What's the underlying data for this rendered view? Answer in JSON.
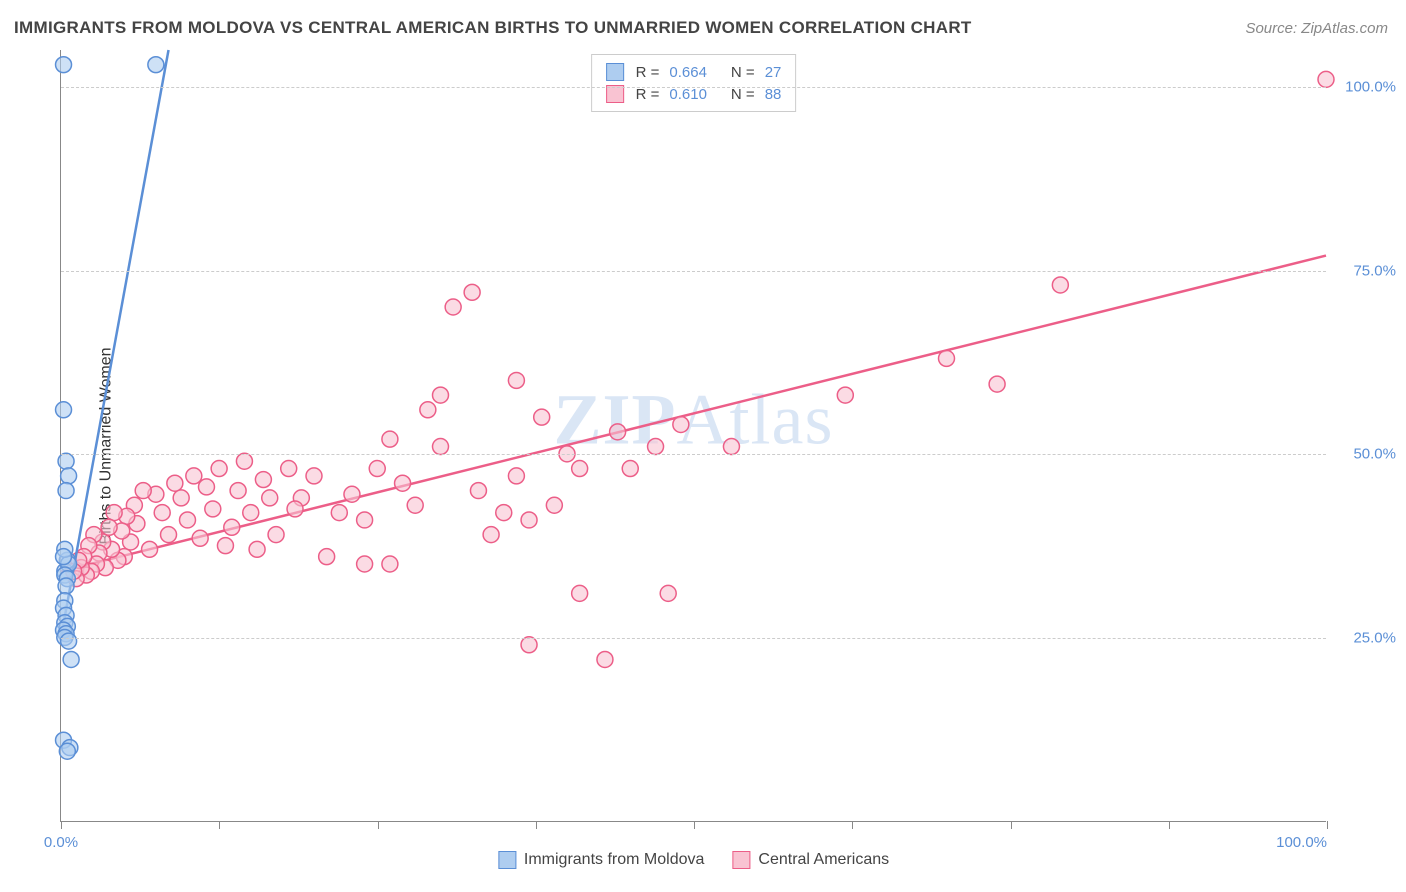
{
  "title": "IMMIGRANTS FROM MOLDOVA VS CENTRAL AMERICAN BIRTHS TO UNMARRIED WOMEN CORRELATION CHART",
  "source": "Source: ZipAtlas.com",
  "y_axis_label": "Births to Unmarried Women",
  "watermark": "ZIPAtlas",
  "chart": {
    "type": "scatter",
    "xlim": [
      0,
      100
    ],
    "ylim": [
      0,
      105
    ],
    "background_color": "#ffffff",
    "grid_color": "#cccccc",
    "grid_dash": "4,4",
    "axis_color": "#888888",
    "y_ticks": [
      25,
      50,
      75,
      100
    ],
    "y_tick_labels": [
      "25.0%",
      "50.0%",
      "75.0%",
      "100.0%"
    ],
    "x_ticks": [
      0,
      12.5,
      25,
      37.5,
      50,
      62.5,
      75,
      87.5,
      100
    ],
    "x_tick_labels": {
      "0": "0.0%",
      "100": "100.0%"
    },
    "tick_label_color": "#5b8fd6",
    "label_fontsize": 16,
    "title_fontsize": 17,
    "marker_radius": 8,
    "marker_stroke_width": 1.5,
    "marker_fill_opacity": 0.25,
    "trend_line_width": 2.5
  },
  "series": [
    {
      "name": "Immigrants from Moldova",
      "color": "#5b8fd6",
      "fill": "#aecdf0",
      "r_value": "0.664",
      "n_value": "27",
      "trend": {
        "x1": 0,
        "y1": 25,
        "x2": 8.5,
        "y2": 105
      },
      "points": [
        [
          0.2,
          103
        ],
        [
          7.5,
          103
        ],
        [
          0.2,
          56
        ],
        [
          0.4,
          49
        ],
        [
          0.6,
          47
        ],
        [
          0.3,
          34
        ],
        [
          0.5,
          35.5
        ],
        [
          0.6,
          35
        ],
        [
          0.3,
          33.5
        ],
        [
          0.5,
          33
        ],
        [
          0.4,
          32
        ],
        [
          0.3,
          30
        ],
        [
          0.2,
          29
        ],
        [
          0.4,
          28
        ],
        [
          0.3,
          27
        ],
        [
          0.5,
          26.5
        ],
        [
          0.2,
          26
        ],
        [
          0.4,
          25.5
        ],
        [
          0.3,
          25
        ],
        [
          0.6,
          24.5
        ],
        [
          0.8,
          22
        ],
        [
          0.2,
          11
        ],
        [
          0.7,
          10
        ],
        [
          0.5,
          9.5
        ],
        [
          0.4,
          45
        ],
        [
          0.3,
          37
        ],
        [
          0.2,
          36
        ]
      ]
    },
    {
      "name": "Central Americans",
      "color": "#ec5e88",
      "fill": "#f9c3d2",
      "r_value": "0.610",
      "n_value": "88",
      "trend": {
        "x1": 0,
        "y1": 34,
        "x2": 100,
        "y2": 77
      },
      "points": [
        [
          100,
          101
        ],
        [
          79,
          73
        ],
        [
          70,
          63
        ],
        [
          74,
          59.5
        ],
        [
          62,
          58
        ],
        [
          53,
          51
        ],
        [
          47,
          51
        ],
        [
          44,
          53
        ],
        [
          41,
          48
        ],
        [
          41,
          31
        ],
        [
          48,
          31
        ],
        [
          43,
          22
        ],
        [
          37,
          24
        ],
        [
          36,
          60
        ],
        [
          32.5,
          72
        ],
        [
          31,
          70
        ],
        [
          30,
          58
        ],
        [
          30,
          51
        ],
        [
          29,
          56
        ],
        [
          28,
          43
        ],
        [
          27,
          46
        ],
        [
          26,
          52
        ],
        [
          25,
          48
        ],
        [
          24,
          41
        ],
        [
          24,
          35
        ],
        [
          23,
          44.5
        ],
        [
          22,
          42
        ],
        [
          21,
          36
        ],
        [
          20,
          47
        ],
        [
          19,
          44
        ],
        [
          18.5,
          42.5
        ],
        [
          18,
          48
        ],
        [
          17,
          39
        ],
        [
          16.5,
          44
        ],
        [
          16,
          46.5
        ],
        [
          15.5,
          37
        ],
        [
          15,
          42
        ],
        [
          14.5,
          49
        ],
        [
          14,
          45
        ],
        [
          13.5,
          40
        ],
        [
          13,
          37.5
        ],
        [
          12.5,
          48
        ],
        [
          12,
          42.5
        ],
        [
          11.5,
          45.5
        ],
        [
          11,
          38.5
        ],
        [
          10.5,
          47
        ],
        [
          10,
          41
        ],
        [
          9.5,
          44
        ],
        [
          9,
          46
        ],
        [
          8.5,
          39
        ],
        [
          8,
          42
        ],
        [
          7.5,
          44.5
        ],
        [
          7,
          37
        ],
        [
          6.5,
          45
        ],
        [
          6,
          40.5
        ],
        [
          5.8,
          43
        ],
        [
          5.5,
          38
        ],
        [
          5.2,
          41.5
        ],
        [
          5,
          36
        ],
        [
          4.8,
          39.5
        ],
        [
          4.5,
          35.5
        ],
        [
          4.2,
          42
        ],
        [
          4,
          37
        ],
        [
          3.8,
          40
        ],
        [
          3.5,
          34.5
        ],
        [
          3.3,
          38
        ],
        [
          3,
          36.5
        ],
        [
          2.8,
          35
        ],
        [
          2.6,
          39
        ],
        [
          2.4,
          34
        ],
        [
          2.2,
          37.5
        ],
        [
          2,
          33.5
        ],
        [
          1.8,
          36
        ],
        [
          1.6,
          34.5
        ],
        [
          1.4,
          35.5
        ],
        [
          1.2,
          33
        ],
        [
          1,
          34
        ],
        [
          35,
          42
        ],
        [
          33,
          45
        ],
        [
          37,
          41
        ],
        [
          38,
          55
        ],
        [
          34,
          39
        ],
        [
          36,
          47
        ],
        [
          39,
          43
        ],
        [
          40,
          50
        ],
        [
          45,
          48
        ],
        [
          49,
          54
        ],
        [
          26,
          35
        ]
      ]
    }
  ],
  "legend_top": {
    "r_label": "R =",
    "n_label": "N ="
  },
  "legend_bottom": {
    "items": [
      "Immigrants from Moldova",
      "Central Americans"
    ]
  }
}
